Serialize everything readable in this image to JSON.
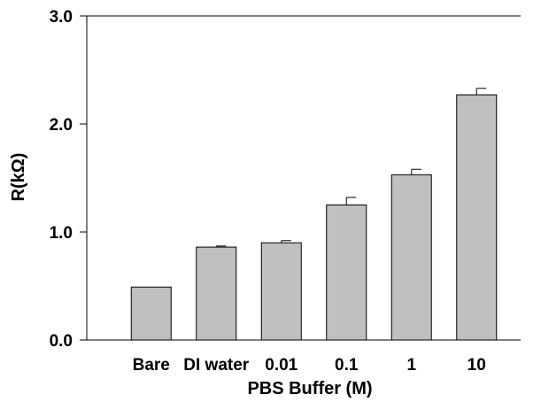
{
  "chart_data": {
    "type": "bar",
    "title": "",
    "xlabel": "PBS Buffer (M)",
    "ylabel": "R(kΩ)",
    "categories": [
      "Bare",
      "DI water",
      "0.01",
      "0.1",
      "1",
      "10"
    ],
    "values": [
      0.49,
      0.86,
      0.9,
      1.25,
      1.53,
      2.27
    ],
    "errors": [
      0.0,
      0.01,
      0.02,
      0.07,
      0.05,
      0.06
    ],
    "ylim": [
      0,
      3.0
    ],
    "yticks": [
      "0.0",
      "1.0",
      "2.0",
      "3.0"
    ],
    "grid": false,
    "colors": {
      "bar_fill": "#c0c0c0",
      "bar_stroke": "#000000",
      "axis": "#000000"
    }
  }
}
